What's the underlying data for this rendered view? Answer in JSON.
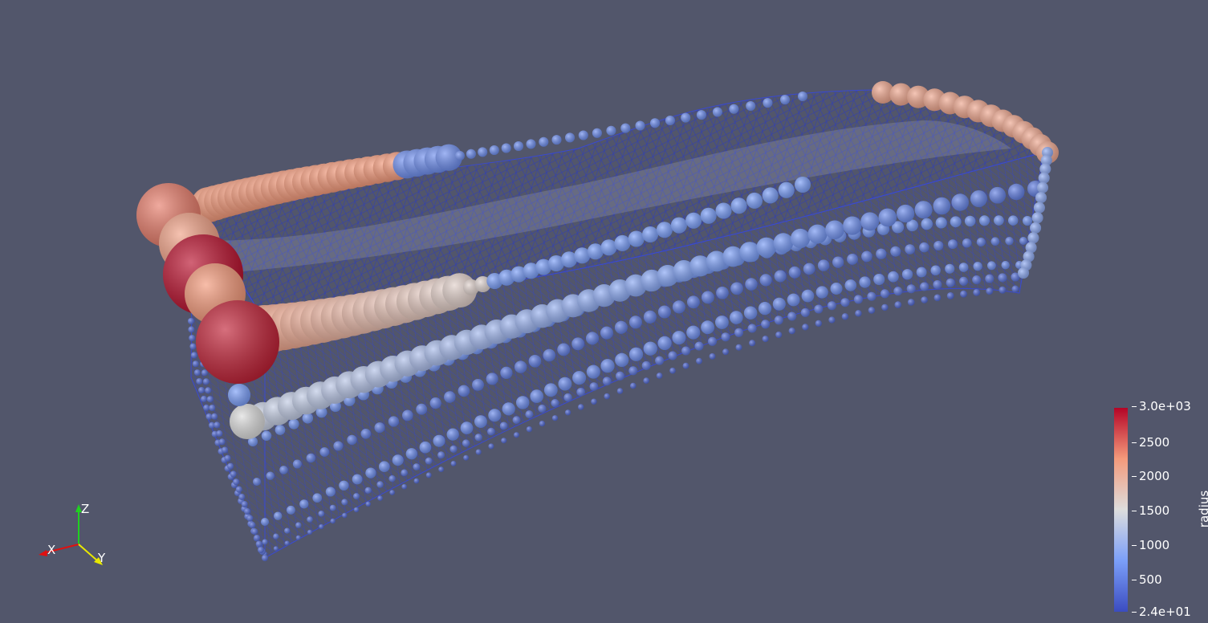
{
  "viewport": {
    "background": "#52566b",
    "render": "3d-glyph-scene",
    "glyph": "sphere",
    "mesh": "wireframe"
  },
  "orientation_axes": {
    "x_label": "X",
    "y_label": "Y",
    "z_label": "Z",
    "x_color": "#e01010",
    "y_color": "#e8e800",
    "z_color": "#20d020"
  },
  "colorbar": {
    "title": "radius",
    "colormap": "cool-to-warm",
    "color_low": "#3b4cc0",
    "color_mid": "#dddddd",
    "color_high": "#b40426",
    "ticks": [
      "3.0e+03",
      "2500",
      "2000",
      "1500",
      "1000",
      "500",
      "2.4e+01"
    ],
    "min": 24,
    "max": 3000
  }
}
